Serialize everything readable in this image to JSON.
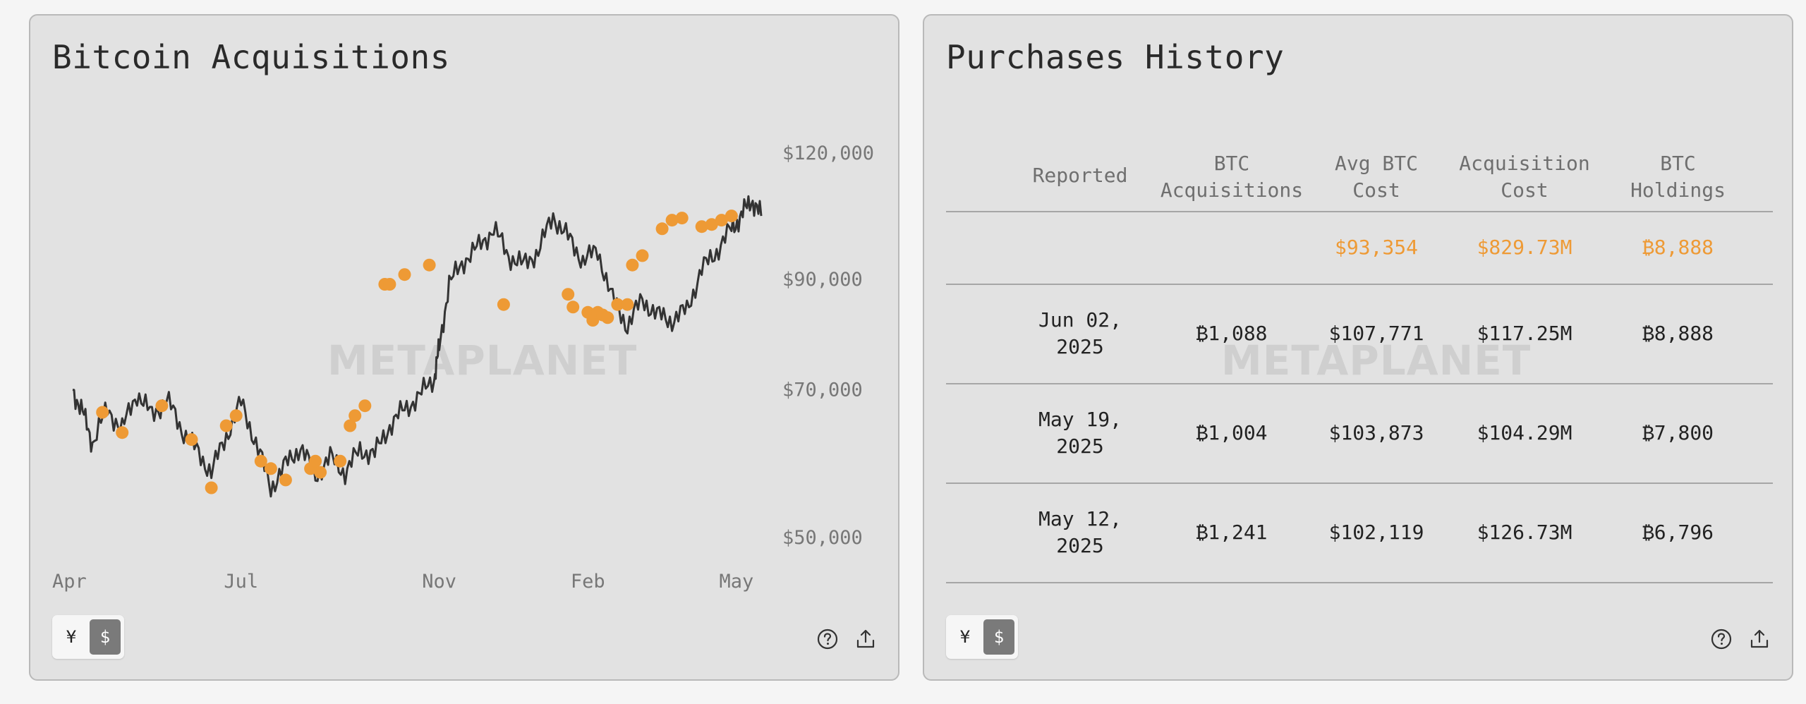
{
  "left_panel": {
    "title": "Bitcoin Acquisitions",
    "watermark": "METAPLANET",
    "currency_toggle": {
      "yen": "¥",
      "usd": "$",
      "selected": "usd"
    },
    "icons": [
      "help-icon",
      "share-icon"
    ]
  },
  "right_panel": {
    "title": "Purchases History",
    "watermark": "METAPLANET",
    "currency_toggle": {
      "yen": "¥",
      "usd": "$",
      "selected": "usd"
    },
    "icons": [
      "help-icon",
      "share-icon"
    ],
    "table": {
      "headers": {
        "reported": "Reported",
        "acquisitions_1": "BTC",
        "acquisitions_2": "Acquisitions",
        "avg_cost_1": "Avg BTC",
        "avg_cost_2": "Cost",
        "acq_cost_1": "Acquisition",
        "acq_cost_2": "Cost",
        "holdings_1": "BTC",
        "holdings_2": "Holdings"
      },
      "totals": {
        "avg_cost": "$93,354",
        "acq_cost": "$829.73M",
        "holdings": "₿8,888"
      },
      "rows": [
        {
          "date_1": "Jun 02,",
          "date_2": "2025",
          "acquisitions": "₿1,088",
          "avg_cost": "$107,771",
          "acq_cost": "$117.25M",
          "holdings": "₿8,888"
        },
        {
          "date_1": "May 19,",
          "date_2": "2025",
          "acquisitions": "₿1,004",
          "avg_cost": "$103,873",
          "acq_cost": "$104.29M",
          "holdings": "₿7,800"
        },
        {
          "date_1": "May 12,",
          "date_2": "2025",
          "acquisitions": "₿1,241",
          "avg_cost": "$102,119",
          "acq_cost": "$126.73M",
          "holdings": "₿6,796"
        }
      ]
    }
  },
  "colors": {
    "accent_orange": "#ee9a35",
    "line": "#333333",
    "panel_bg": "#e2e2e2"
  },
  "chart_data": {
    "type": "line",
    "title": "Bitcoin Acquisitions",
    "xlabel": "",
    "ylabel": "",
    "x_ticks": [
      "Apr",
      "Jul",
      "Nov",
      "Feb",
      "May"
    ],
    "x_tick_months": [
      0,
      3,
      7,
      10,
      13
    ],
    "y_ticks": [
      50000,
      70000,
      90000,
      120000
    ],
    "y_tick_labels": [
      "$50,000",
      "$70,000",
      "$90,000",
      "$120,000"
    ],
    "y_scale": "log",
    "ylim": [
      50000,
      120000
    ],
    "xlim_months": [
      -0.5,
      13.5
    ],
    "grid": false,
    "series": [
      {
        "x_months": [
          -0.4,
          -0.2,
          0.0,
          0.3,
          0.6,
          0.9,
          1.2,
          1.5,
          1.8,
          2.1,
          2.4,
          2.7,
          3.0,
          3.3,
          3.6,
          3.9,
          4.2,
          4.5,
          4.8,
          5.1,
          5.4,
          5.7,
          6.0,
          6.3,
          6.6,
          6.9,
          7.0,
          7.2,
          7.5,
          7.8,
          8.1,
          8.4,
          8.7,
          9.0,
          9.3,
          9.6,
          9.9,
          10.2,
          10.5,
          10.8,
          11.1,
          11.4,
          11.7,
          12.0,
          12.3,
          12.6,
          12.9,
          13.1,
          13.3,
          13.5
        ],
        "y": [
          70000,
          66500,
          62000,
          67000,
          64000,
          69500,
          66000,
          68500,
          64000,
          61000,
          58000,
          63000,
          68000,
          62000,
          56000,
          59000,
          61500,
          57500,
          60000,
          58000,
          61000,
          60500,
          64500,
          67000,
          69000,
          72000,
          77000,
          89000,
          94000,
          97000,
          101000,
          95000,
          93000,
          96000,
          104000,
          99000,
          94000,
          96000,
          86000,
          81000,
          86000,
          83000,
          82000,
          84000,
          92000,
          96000,
          101000,
          104000,
          108000,
          104000
        ]
      }
    ],
    "purchase_points": {
      "x_months": [
        0.2,
        0.6,
        1.4,
        2.0,
        2.4,
        2.7,
        2.9,
        3.4,
        3.6,
        3.9,
        4.4,
        4.5,
        4.6,
        5.0,
        5.2,
        5.3,
        5.5,
        5.9,
        6.0,
        6.3,
        6.8,
        8.3,
        9.6,
        9.7,
        10.0,
        10.1,
        10.2,
        10.3,
        10.4,
        10.6,
        10.8,
        10.9,
        11.1,
        11.5,
        11.7,
        11.9,
        12.3,
        12.5,
        12.7,
        12.9
      ],
      "y": [
        66500,
        63500,
        67500,
        62500,
        56000,
        64500,
        66000,
        59500,
        58500,
        57000,
        58500,
        59500,
        58000,
        59500,
        64500,
        66000,
        67500,
        89000,
        89000,
        91000,
        93000,
        85000,
        87000,
        84500,
        83500,
        82000,
        83500,
        83000,
        82500,
        85000,
        85000,
        93000,
        95000,
        101000,
        103000,
        103500,
        101500,
        102000,
        103000,
        104000
      ]
    }
  }
}
